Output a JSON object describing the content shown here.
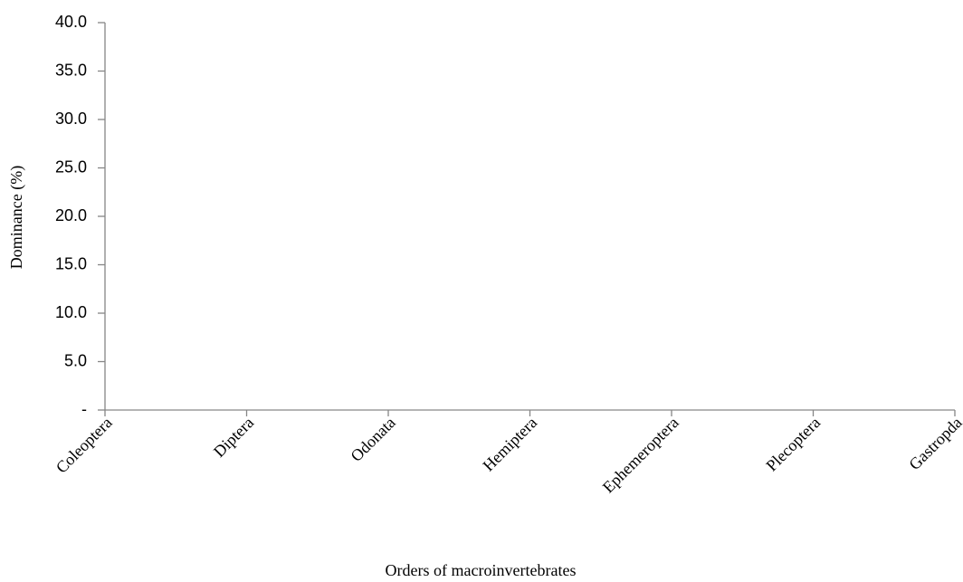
{
  "chart_data": {
    "type": "line",
    "x_label": "Orders of macroinvertebrates",
    "y_label": "Dominance (%)",
    "categories": [
      "Coleoptera",
      "Diptera",
      "Odonata",
      "Hemiptera",
      "Ephemeroptera",
      "Plecoptera",
      "Gastropda"
    ],
    "ylim": [
      0,
      40
    ],
    "yticks": [
      {
        "value": 0,
        "label": "-"
      },
      {
        "value": 5,
        "label": "5.0"
      },
      {
        "value": 10,
        "label": "10.0"
      },
      {
        "value": 15,
        "label": "15.0"
      },
      {
        "value": 20,
        "label": "20.0"
      },
      {
        "value": 25,
        "label": "25.0"
      },
      {
        "value": 30,
        "label": "30.0"
      },
      {
        "value": 35,
        "label": "35.0"
      },
      {
        "value": 40,
        "label": "40.0"
      }
    ],
    "grid": false
  }
}
